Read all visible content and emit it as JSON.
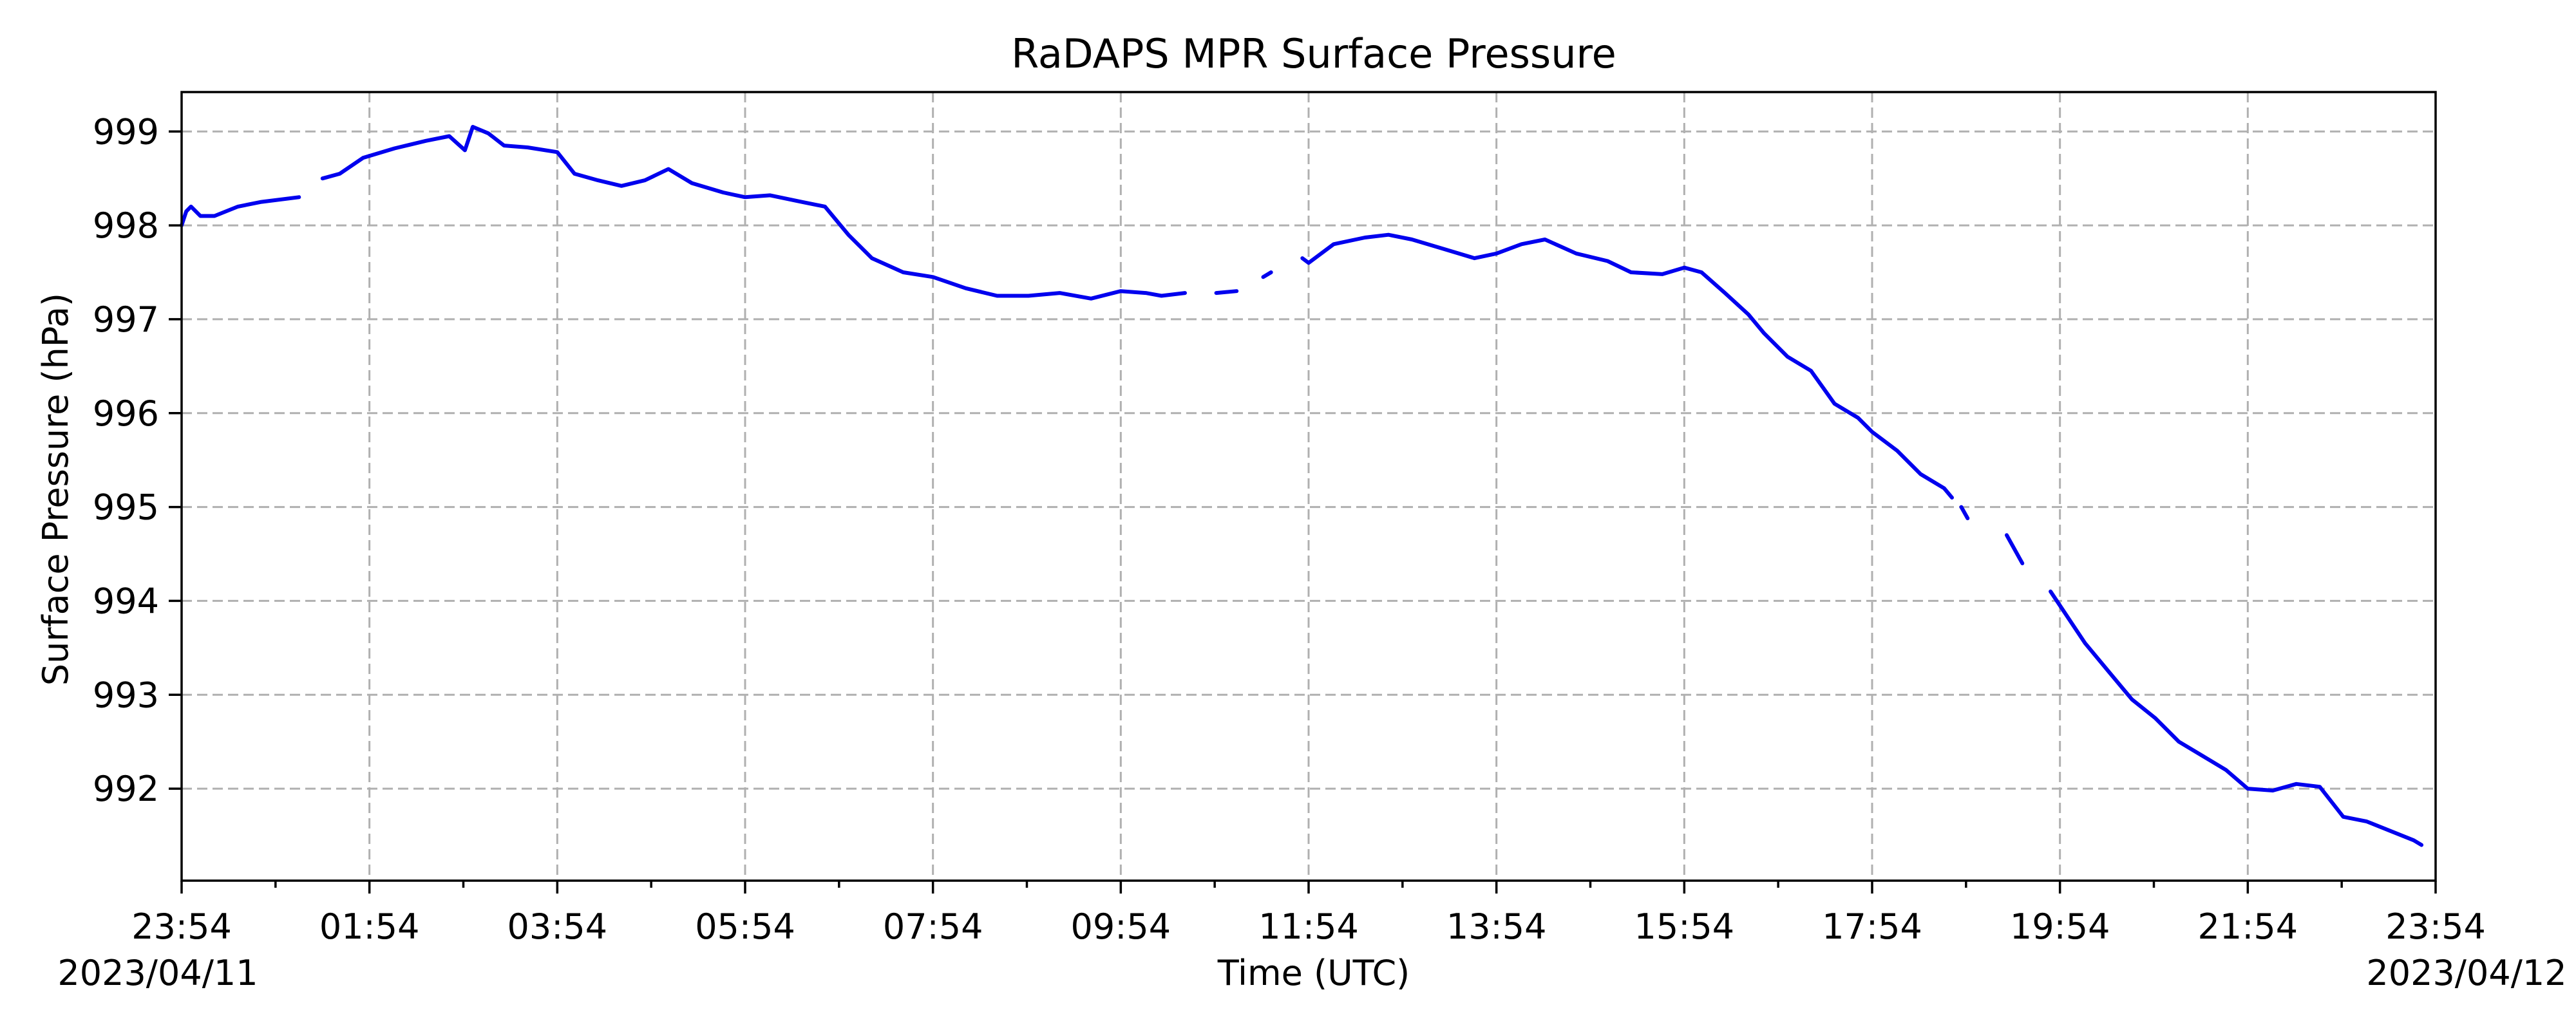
{
  "chart_data": {
    "type": "line",
    "title": "RaDAPS MPR Surface Pressure",
    "xlabel": "Time (UTC)",
    "ylabel": "Surface Pressure (hPa)",
    "x_start_label": "2023/04/11",
    "x_end_label": "2023/04/12",
    "x_tick_labels": [
      "23:54",
      "01:54",
      "03:54",
      "05:54",
      "07:54",
      "09:54",
      "11:54",
      "13:54",
      "15:54",
      "17:54",
      "19:54",
      "21:54",
      "23:54"
    ],
    "y_ticks": [
      992,
      993,
      994,
      995,
      996,
      997,
      998,
      999
    ],
    "ylim": [
      991.02,
      999.42
    ],
    "xlim": [
      "2023-04-11 23:54",
      "2023-04-12 23:54"
    ],
    "grid": true,
    "color": "#0000ee",
    "series": [
      {
        "segments": [
          [
            [
              "2023-04-11 23:54",
              998.0
            ],
            [
              "2023-04-11 23:57",
              998.15
            ],
            [
              "2023-04-12 00:00",
              998.2
            ],
            [
              "2023-04-12 00:06",
              998.1
            ],
            [
              "2023-04-12 00:15",
              998.1
            ],
            [
              "2023-04-12 00:30",
              998.2
            ],
            [
              "2023-04-12 00:45",
              998.25
            ],
            [
              "2023-04-12 01:09",
              998.3
            ]
          ],
          [
            [
              "2023-04-12 01:24",
              998.5
            ],
            [
              "2023-04-12 01:35",
              998.55
            ],
            [
              "2023-04-12 01:50",
              998.72
            ],
            [
              "2023-04-12 02:10",
              998.82
            ],
            [
              "2023-04-12 02:30",
              998.9
            ],
            [
              "2023-04-12 02:45",
              998.95
            ],
            [
              "2023-04-12 02:55",
              998.8
            ],
            [
              "2023-04-12 03:00",
              999.05
            ],
            [
              "2023-04-12 03:10",
              998.98
            ],
            [
              "2023-04-12 03:20",
              998.85
            ],
            [
              "2023-04-12 03:35",
              998.83
            ],
            [
              "2023-04-12 03:54",
              998.78
            ],
            [
              "2023-04-12 04:05",
              998.55
            ],
            [
              "2023-04-12 04:20",
              998.48
            ],
            [
              "2023-04-12 04:35",
              998.42
            ],
            [
              "2023-04-12 04:50",
              998.48
            ],
            [
              "2023-04-12 05:05",
              998.6
            ],
            [
              "2023-04-12 05:20",
              998.45
            ],
            [
              "2023-04-12 05:40",
              998.35
            ],
            [
              "2023-04-12 05:54",
              998.3
            ],
            [
              "2023-04-12 06:10",
              998.32
            ],
            [
              "2023-04-12 06:30",
              998.25
            ],
            [
              "2023-04-12 06:45",
              998.2
            ],
            [
              "2023-04-12 07:00",
              997.9
            ],
            [
              "2023-04-12 07:15",
              997.65
            ],
            [
              "2023-04-12 07:35",
              997.5
            ],
            [
              "2023-04-12 07:54",
              997.45
            ],
            [
              "2023-04-12 08:15",
              997.33
            ],
            [
              "2023-04-12 08:35",
              997.25
            ],
            [
              "2023-04-12 08:55",
              997.25
            ],
            [
              "2023-04-12 09:15",
              997.28
            ],
            [
              "2023-04-12 09:35",
              997.22
            ],
            [
              "2023-04-12 09:54",
              997.3
            ],
            [
              "2023-04-12 10:10",
              997.28
            ],
            [
              "2023-04-12 10:20",
              997.25
            ],
            [
              "2023-04-12 10:35",
              997.28
            ]
          ],
          [
            [
              "2023-04-12 10:55",
              997.28
            ],
            [
              "2023-04-12 11:08",
              997.3
            ]
          ],
          [
            [
              "2023-04-12 11:25",
              997.45
            ],
            [
              "2023-04-12 11:30",
              997.5
            ]
          ],
          [
            [
              "2023-04-12 11:50",
              997.65
            ],
            [
              "2023-04-12 11:54",
              997.6
            ],
            [
              "2023-04-12 12:10",
              997.8
            ],
            [
              "2023-04-12 12:30",
              997.87
            ],
            [
              "2023-04-12 12:45",
              997.9
            ],
            [
              "2023-04-12 13:00",
              997.85
            ],
            [
              "2023-04-12 13:20",
              997.75
            ],
            [
              "2023-04-12 13:40",
              997.65
            ],
            [
              "2023-04-12 13:54",
              997.7
            ],
            [
              "2023-04-12 14:10",
              997.8
            ],
            [
              "2023-04-12 14:25",
              997.85
            ],
            [
              "2023-04-12 14:45",
              997.7
            ],
            [
              "2023-04-12 15:05",
              997.62
            ],
            [
              "2023-04-12 15:20",
              997.5
            ],
            [
              "2023-04-12 15:40",
              997.48
            ],
            [
              "2023-04-12 15:54",
              997.55
            ],
            [
              "2023-04-12 16:05",
              997.5
            ],
            [
              "2023-04-12 16:20",
              997.28
            ],
            [
              "2023-04-12 16:35",
              997.05
            ],
            [
              "2023-04-12 16:45",
              996.85
            ],
            [
              "2023-04-12 17:00",
              996.6
            ],
            [
              "2023-04-12 17:15",
              996.45
            ],
            [
              "2023-04-12 17:30",
              996.1
            ],
            [
              "2023-04-12 17:45",
              995.95
            ],
            [
              "2023-04-12 17:54",
              995.8
            ],
            [
              "2023-04-12 18:10",
              995.6
            ],
            [
              "2023-04-12 18:25",
              995.35
            ],
            [
              "2023-04-12 18:40",
              995.2
            ],
            [
              "2023-04-12 18:45",
              995.1
            ]
          ],
          [
            [
              "2023-04-12 18:51",
              995.0
            ],
            [
              "2023-04-12 18:55",
              994.88
            ]
          ],
          [
            [
              "2023-04-12 19:20",
              994.7
            ],
            [
              "2023-04-12 19:30",
              994.4
            ]
          ],
          [
            [
              "2023-04-12 19:48",
              994.1
            ],
            [
              "2023-04-12 19:54",
              993.95
            ],
            [
              "2023-04-12 20:10",
              993.55
            ],
            [
              "2023-04-12 20:25",
              993.25
            ],
            [
              "2023-04-12 20:40",
              992.95
            ],
            [
              "2023-04-12 20:55",
              992.75
            ],
            [
              "2023-04-12 21:10",
              992.5
            ],
            [
              "2023-04-12 21:25",
              992.35
            ],
            [
              "2023-04-12 21:40",
              992.2
            ],
            [
              "2023-04-12 21:54",
              992.0
            ],
            [
              "2023-04-12 22:10",
              991.98
            ],
            [
              "2023-04-12 22:25",
              992.05
            ],
            [
              "2023-04-12 22:40",
              992.02
            ],
            [
              "2023-04-12 22:55",
              991.7
            ],
            [
              "2023-04-12 23:10",
              991.65
            ],
            [
              "2023-04-12 23:25",
              991.55
            ],
            [
              "2023-04-12 23:40",
              991.45
            ],
            [
              "2023-04-12 23:45",
              991.4
            ]
          ]
        ]
      }
    ]
  }
}
